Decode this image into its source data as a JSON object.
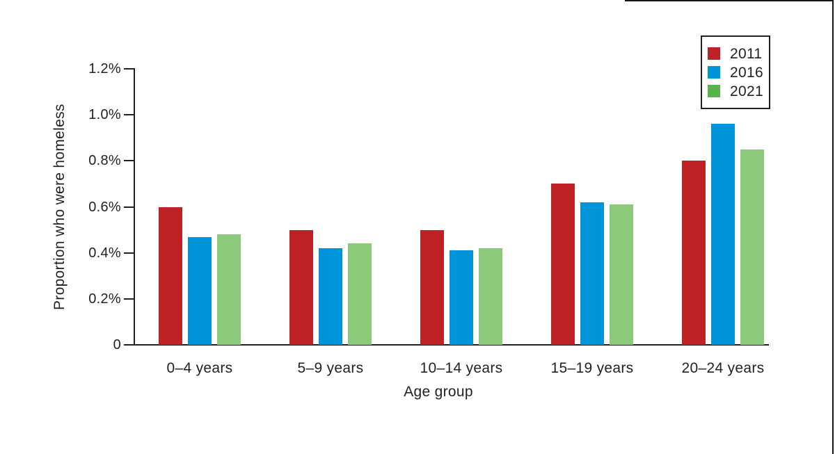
{
  "chart_data": {
    "type": "bar",
    "title": "",
    "categories": [
      "0–4 years",
      "5–9 years",
      "10–14 years",
      "15–19 years",
      "20–24 years"
    ],
    "series": [
      {
        "name": "2011",
        "color": "#be2126",
        "legend_color": "#be2126",
        "values": [
          0.6,
          0.5,
          0.5,
          0.7,
          0.8
        ]
      },
      {
        "name": "2016",
        "color": "#0095d8",
        "legend_color": "#0095d8",
        "values": [
          0.47,
          0.42,
          0.41,
          0.62,
          0.96
        ]
      },
      {
        "name": "2021",
        "color": "#8dc97b",
        "legend_color": "#55b549",
        "values": [
          0.48,
          0.44,
          0.42,
          0.61,
          0.85
        ]
      }
    ],
    "xlabel": "Age group",
    "ylabel": "Proportion who were homeless",
    "ylim": [
      0,
      1.2
    ],
    "yticks": [
      {
        "value": 0.0,
        "label": "0"
      },
      {
        "value": 0.2,
        "label": "0.2%"
      },
      {
        "value": 0.4,
        "label": "0.4%"
      },
      {
        "value": 0.6,
        "label": "0.6%"
      },
      {
        "value": 0.8,
        "label": "0.8%"
      },
      {
        "value": 1.0,
        "label": "1.0%"
      },
      {
        "value": 1.2,
        "label": "1.2%"
      }
    ],
    "legend_position": "top-right",
    "grid": false,
    "style": {
      "text_color": "#231f20",
      "axis_color": "#231f20",
      "frame_color": "#161616",
      "legend_border_color": "#231f20",
      "background": "#ffffff"
    }
  }
}
